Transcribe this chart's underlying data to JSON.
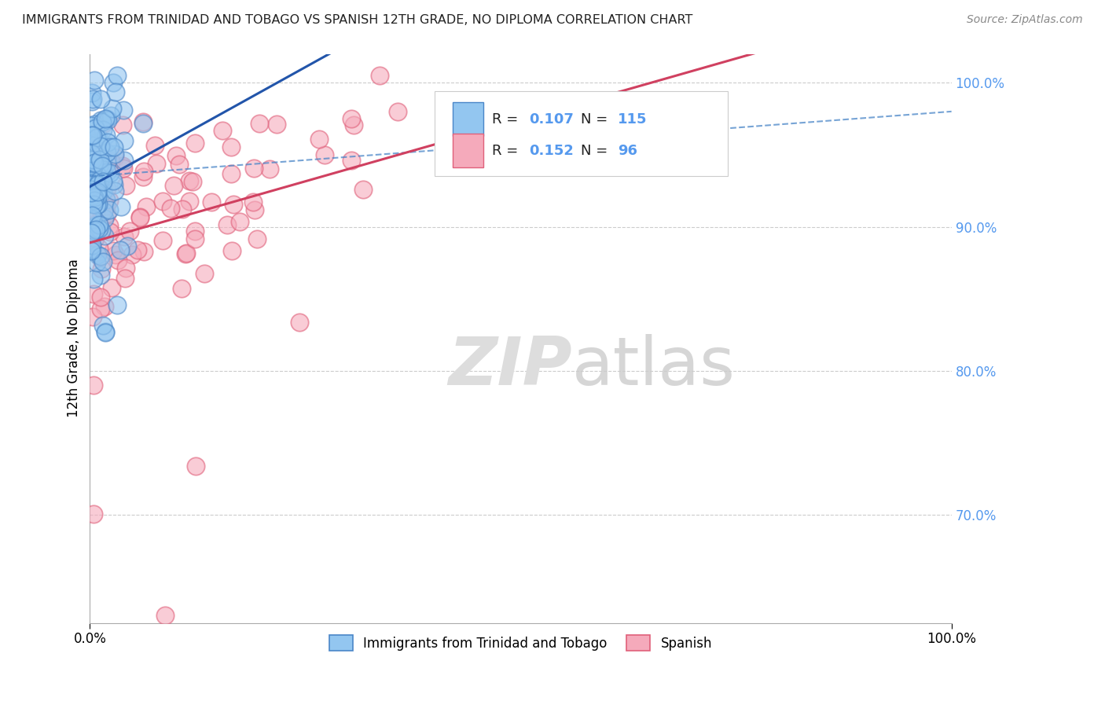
{
  "title": "IMMIGRANTS FROM TRINIDAD AND TOBAGO VS SPANISH 12TH GRADE, NO DIPLOMA CORRELATION CHART",
  "source": "Source: ZipAtlas.com",
  "ylabel": "12th Grade, No Diploma",
  "xlim": [
    0.0,
    1.0
  ],
  "ylim": [
    0.625,
    1.02
  ],
  "yticks": [
    0.7,
    0.8,
    0.9,
    1.0
  ],
  "ytick_labels": [
    "70.0%",
    "80.0%",
    "90.0%",
    "100.0%"
  ],
  "blue_R": 0.107,
  "blue_N": 115,
  "pink_R": 0.152,
  "pink_N": 96,
  "blue_color": "#93C6F0",
  "pink_color": "#F5AABB",
  "blue_edge_color": "#4A86C8",
  "pink_edge_color": "#E0607A",
  "blue_line_color": "#2255AA",
  "pink_line_color": "#D04060",
  "blue_label": "Immigrants from Trinidad and Tobago",
  "pink_label": "Spanish",
  "background_color": "#ffffff",
  "grid_color": "#cccccc",
  "tick_color": "#5599EE",
  "watermark_color": "#DDDDDD"
}
